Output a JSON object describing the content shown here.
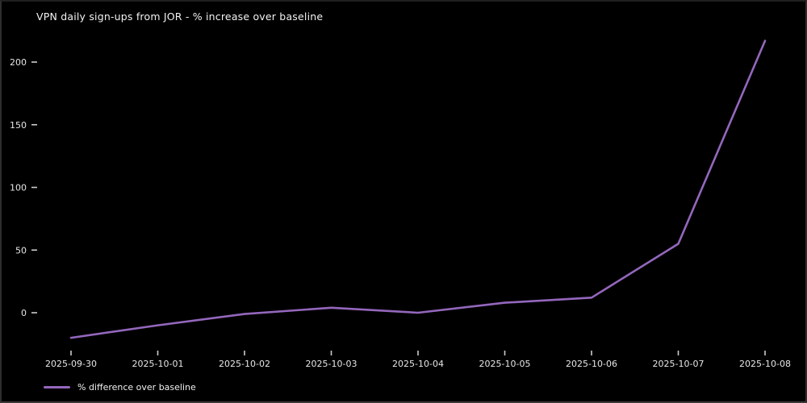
{
  "figure": {
    "title": "VPN daily sign-ups from JOR - % increase over baseline"
  },
  "legend": {
    "label": "% difference over baseline"
  },
  "colors": {
    "background": "#000000",
    "border": "#2e2e2e",
    "title_text": "#f2f2f2",
    "tick_text": "#e6e6e6",
    "tick_mark": "#cccccc",
    "line": "#9467bd"
  },
  "chart_data": {
    "type": "line",
    "title": "VPN daily sign-ups from JOR - % increase over baseline",
    "x": [
      "2025-09-30",
      "2025-10-01",
      "2025-10-02",
      "2025-10-03",
      "2025-10-04",
      "2025-10-05",
      "2025-10-06",
      "2025-10-07",
      "2025-10-08"
    ],
    "series": [
      {
        "name": "% difference over baseline",
        "color": "#9467bd",
        "values": [
          -20,
          -10,
          -1,
          4,
          0,
          8,
          12,
          55,
          217
        ]
      }
    ],
    "xlabel": "",
    "ylabel": "",
    "yticks": [
      0,
      50,
      100,
      150,
      200
    ],
    "ylim": [
      -32,
      230
    ],
    "grid": false,
    "legend_position": "bottom-left"
  }
}
